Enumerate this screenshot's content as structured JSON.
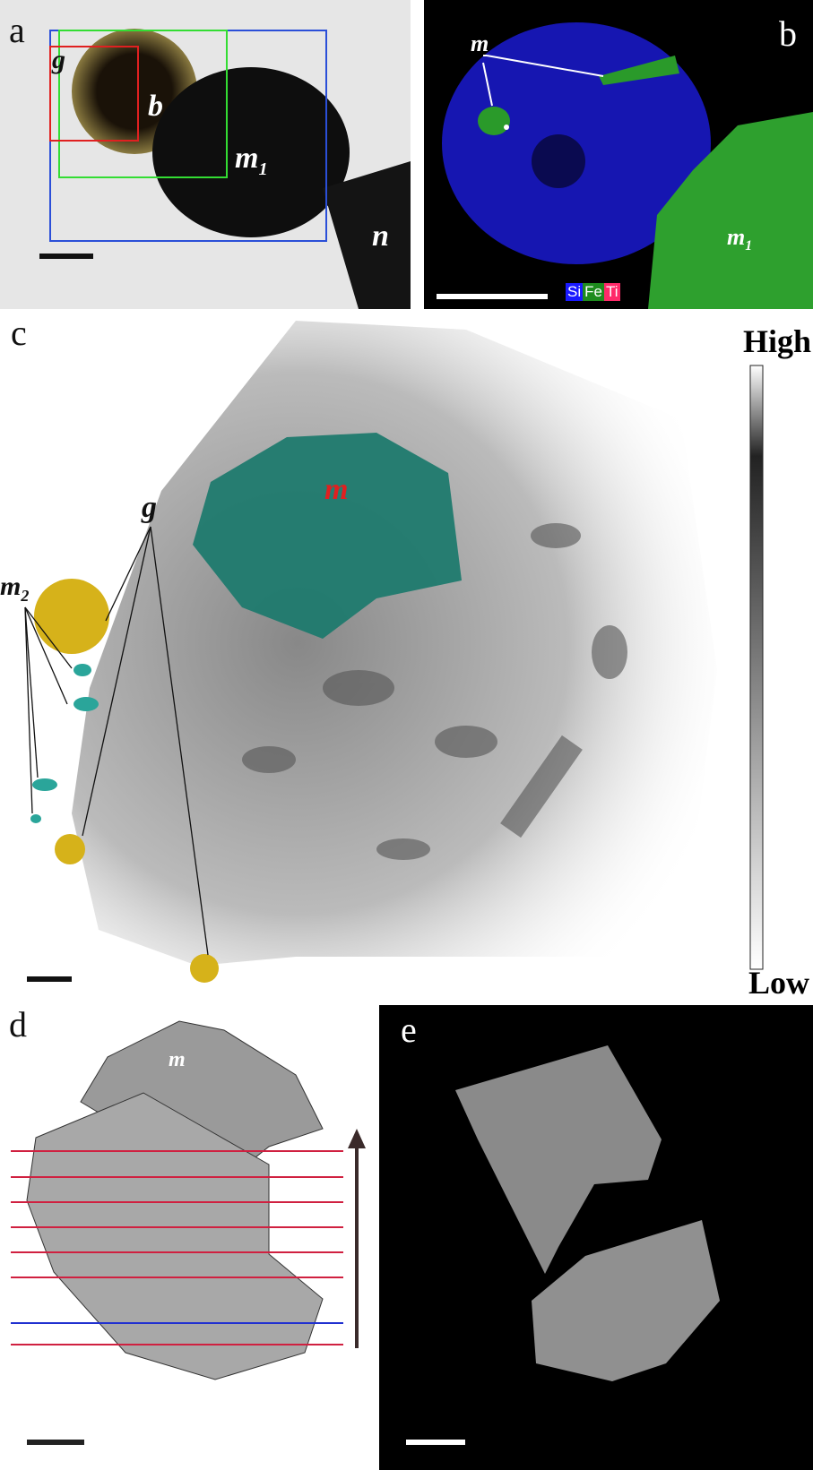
{
  "panels": {
    "a": {
      "label": "a",
      "annotations": {
        "g": "g",
        "b": "b",
        "m1": "m",
        "m1_sub": "1",
        "n": "n"
      }
    },
    "b": {
      "label": "b",
      "annotations": {
        "m": "m",
        "m1": "m",
        "m1_sub": "1"
      },
      "legend": [
        {
          "text": "Si",
          "color": "#1a1aff"
        },
        {
          "text": "Fe",
          "color": "#1e8c1e"
        },
        {
          "text": "Ti",
          "color": "#ff2a6a"
        }
      ]
    },
    "c": {
      "label": "c",
      "annotations": {
        "g": "g",
        "m": "m",
        "m2": "m",
        "m2_sub": "2"
      },
      "colorbar": {
        "high": "High",
        "low": "Low"
      }
    },
    "d": {
      "label": "d",
      "annotations": {
        "m": "m"
      }
    },
    "e": {
      "label": "e"
    }
  },
  "colors": {
    "box_blue": "#2b4fd8",
    "box_green": "#33dd33",
    "box_red": "#e02020",
    "mineral_teal": "#1f7a6e",
    "grain_gold": "#d6b21a",
    "slice_red": "#d02040",
    "slice_blue": "#2030d0"
  }
}
